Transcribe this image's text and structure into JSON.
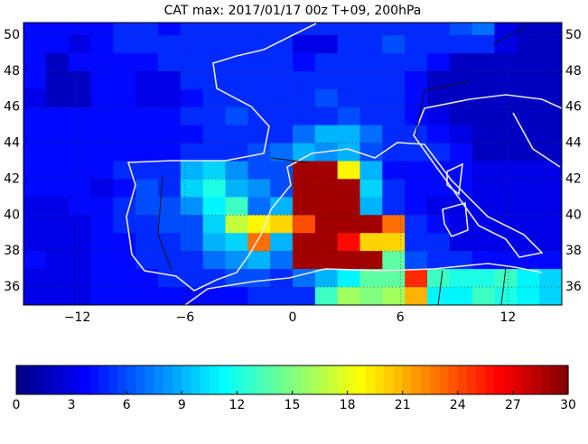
{
  "chart_data": {
    "type": "heatmap",
    "title": "CAT max: 2017/01/17 00z T+09, 200hPa",
    "colormap": "jet",
    "clim": [
      0,
      30
    ],
    "cticks": [
      0,
      3,
      6,
      9,
      12,
      15,
      18,
      21,
      24,
      27,
      30
    ],
    "grid": true,
    "xlim": [
      -15,
      15
    ],
    "ylim": [
      35,
      50.7
    ],
    "xticks": [
      {
        "value": -12,
        "label": "−12"
      },
      {
        "value": -6,
        "label": "−6"
      },
      0,
      6,
      12
    ],
    "yticks": [
      36,
      38,
      40,
      42,
      44,
      46,
      48,
      50
    ],
    "x": [
      -14.375,
      -13.125,
      -11.875,
      -10.625,
      -9.375,
      -8.125,
      -6.875,
      -5.625,
      -4.375,
      -3.125,
      -1.875,
      -0.625,
      0.625,
      1.875,
      3.125,
      4.375,
      5.625,
      6.875,
      8.125,
      9.375,
      10.625,
      11.875,
      13.125,
      14.375
    ],
    "y": [
      50.5,
      49.5,
      48.5,
      47.5,
      46.5,
      45.5,
      44.5,
      43.5,
      42.5,
      41.5,
      40.5,
      39.5,
      38.5,
      37.5,
      36.5,
      35.5
    ],
    "values": [
      [
        4,
        4,
        4,
        4,
        5,
        5,
        4,
        5,
        5,
        5,
        5,
        5,
        5,
        5,
        5,
        5,
        5,
        5,
        5,
        6,
        7,
        3,
        2,
        2
      ],
      [
        4,
        4,
        3,
        4,
        5,
        5,
        5,
        5,
        5,
        5,
        5,
        5,
        3,
        3,
        5,
        5,
        6,
        5,
        5,
        5,
        5,
        3,
        2,
        2
      ],
      [
        4,
        2,
        4,
        4,
        4,
        4,
        5,
        5,
        5,
        5,
        5,
        5,
        4,
        5,
        5,
        5,
        5,
        5,
        4,
        2,
        2,
        2,
        2,
        2
      ],
      [
        4,
        2,
        2,
        4,
        4,
        3,
        3,
        5,
        5,
        5,
        5,
        5,
        5,
        5,
        5,
        5,
        5,
        4,
        2,
        2,
        2,
        2,
        2,
        2
      ],
      [
        3,
        2,
        2,
        4,
        4,
        3,
        3,
        4,
        5,
        5,
        5,
        5,
        5,
        6,
        5,
        5,
        5,
        4,
        2,
        2,
        2,
        2,
        2,
        2
      ],
      [
        4,
        4,
        4,
        4,
        4,
        4,
        4,
        5,
        5,
        6,
        5,
        5,
        5,
        5,
        6,
        5,
        5,
        4,
        3,
        2,
        2,
        2,
        2,
        2
      ],
      [
        4,
        4,
        4,
        4,
        4,
        4,
        4,
        4,
        5,
        5,
        5,
        5,
        7,
        9,
        9,
        7,
        5,
        5,
        4,
        3,
        2,
        2,
        2,
        2
      ],
      [
        4,
        4,
        4,
        4,
        4,
        4,
        4,
        5,
        5,
        5,
        6,
        7,
        9,
        8,
        9,
        6,
        5,
        5,
        5,
        4,
        2,
        2,
        2,
        2
      ],
      [
        4,
        4,
        4,
        4,
        5,
        5,
        5,
        9,
        10,
        8,
        6,
        6,
        29,
        29,
        19,
        9,
        4,
        4,
        4,
        4,
        3,
        3,
        3,
        3
      ],
      [
        4,
        4,
        4,
        3,
        4,
        6,
        5,
        10,
        12,
        9,
        8,
        6,
        29,
        29,
        29,
        10,
        5,
        4,
        4,
        4,
        3,
        3,
        3,
        3
      ],
      [
        3,
        3,
        4,
        4,
        5,
        6,
        6,
        8,
        11,
        13,
        7,
        9,
        29,
        29,
        29,
        9,
        5,
        4,
        3,
        3,
        3,
        3,
        3,
        3
      ],
      [
        3,
        3,
        3,
        4,
        5,
        5,
        6,
        6,
        10,
        17,
        19,
        20,
        24,
        29,
        29,
        29,
        23,
        5,
        4,
        3,
        3,
        3,
        3,
        3
      ],
      [
        3,
        3,
        3,
        4,
        4,
        5,
        5,
        6,
        9,
        10,
        23,
        9,
        29,
        29,
        26,
        20,
        20,
        5,
        5,
        3,
        3,
        3,
        3,
        3
      ],
      [
        4,
        3,
        3,
        4,
        4,
        5,
        5,
        5,
        7,
        8,
        9,
        7,
        29,
        29,
        29,
        29,
        14,
        6,
        5,
        5,
        4,
        4,
        4,
        4
      ],
      [
        3,
        3,
        3,
        4,
        4,
        4,
        5,
        5,
        5,
        6,
        6,
        5,
        7,
        9,
        11,
        14,
        14,
        25,
        13,
        12,
        12,
        13,
        11,
        10
      ],
      [
        3,
        3,
        3,
        4,
        4,
        4,
        4,
        4,
        4,
        4,
        5,
        5,
        5,
        13,
        16,
        15,
        16,
        21,
        11,
        11,
        13,
        12,
        11,
        10
      ]
    ]
  }
}
